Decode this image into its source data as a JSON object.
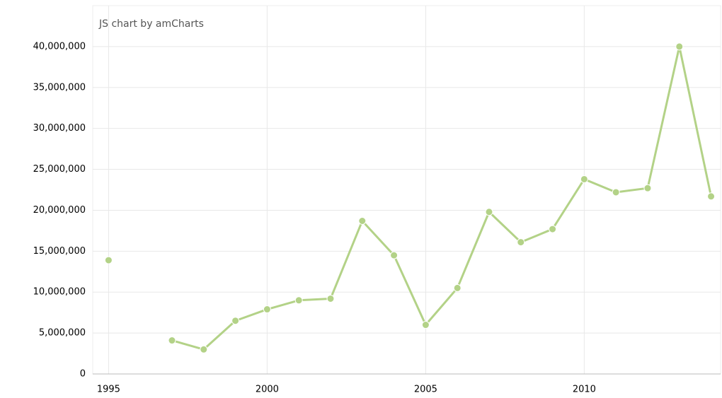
{
  "chart_data": {
    "type": "line",
    "title": "JS chart by amCharts",
    "x": [
      1995,
      1996,
      1997,
      1998,
      1999,
      2000,
      2001,
      2002,
      2003,
      2004,
      2005,
      2006,
      2007,
      2008,
      2009,
      2010,
      2011,
      2012,
      2013,
      2014
    ],
    "series": [
      {
        "name": null,
        "color": "#b3d287",
        "values": [
          13900000,
          null,
          4100000,
          3000000,
          6500000,
          7900000,
          9000000,
          9200000,
          18700000,
          14500000,
          6000000,
          10500000,
          19800000,
          16100000,
          17700000,
          23800000,
          22200000,
          22700000,
          40000000,
          21700000
        ]
      }
    ],
    "xlim": [
      1994.5,
      2014.3
    ],
    "xticks": [
      1995,
      2000,
      2005,
      2010
    ],
    "ylim": [
      0,
      45000000
    ],
    "yticks": [
      0,
      {
        "value": 5000000,
        "label": "5,000,000"
      },
      {
        "value": 10000000,
        "label": "10,000,000"
      },
      {
        "value": 15000000,
        "label": "15,000,000"
      },
      {
        "value": 20000000,
        "label": "20,000,000"
      },
      {
        "value": 25000000,
        "label": "25,000,000"
      },
      {
        "value": 30000000,
        "label": "30,000,000"
      },
      {
        "value": 35000000,
        "label": "35,000,000"
      },
      {
        "value": 40000000,
        "label": "40,000,000"
      }
    ],
    "grid": true
  }
}
